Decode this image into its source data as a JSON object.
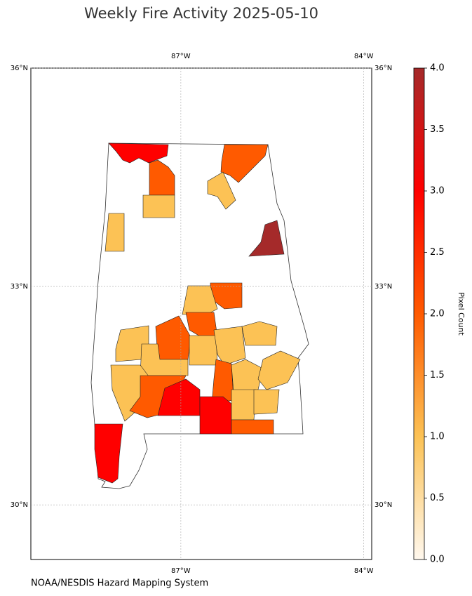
{
  "title": "Weekly Fire Activity 2025-05-10",
  "map": {
    "xlim": [
      -89.46,
      -83.87
    ],
    "ylim": [
      29.25,
      36
    ],
    "lon_ticks": [
      {
        "value": -87,
        "label": "87°W"
      },
      {
        "value": -84,
        "label": "84°W"
      }
    ],
    "lat_ticks": [
      {
        "value": 36,
        "label": "36°N"
      },
      {
        "value": 33,
        "label": "33°N"
      },
      {
        "value": 30,
        "label": "30°N"
      }
    ],
    "grid": true,
    "county_pixel_counts": [
      3,
      2,
      2,
      1,
      1,
      1,
      4,
      2,
      1,
      2,
      2,
      1,
      1,
      1,
      1,
      1,
      2,
      1,
      1,
      1,
      2,
      3,
      3,
      1,
      1,
      2,
      3
    ]
  },
  "colorbar": {
    "label": "Pixel Count",
    "lim": [
      0,
      4
    ],
    "colors": [
      "#fff8ee",
      "#fcc255",
      "#ff5a00",
      "#ff0000",
      "#a52a2a"
    ],
    "ticks": [
      {
        "value": 0,
        "label": "0.0"
      },
      {
        "value": 0.5,
        "label": "0.5"
      },
      {
        "value": 1,
        "label": "1.0"
      },
      {
        "value": 1.5,
        "label": "1.5"
      },
      {
        "value": 2,
        "label": "2.0"
      },
      {
        "value": 2.5,
        "label": "2.5"
      },
      {
        "value": 3,
        "label": "3.0"
      },
      {
        "value": 3.5,
        "label": "3.5"
      },
      {
        "value": 4,
        "label": "4.0"
      }
    ]
  },
  "source": "NOAA/NESDIS Hazard Mapping System"
}
